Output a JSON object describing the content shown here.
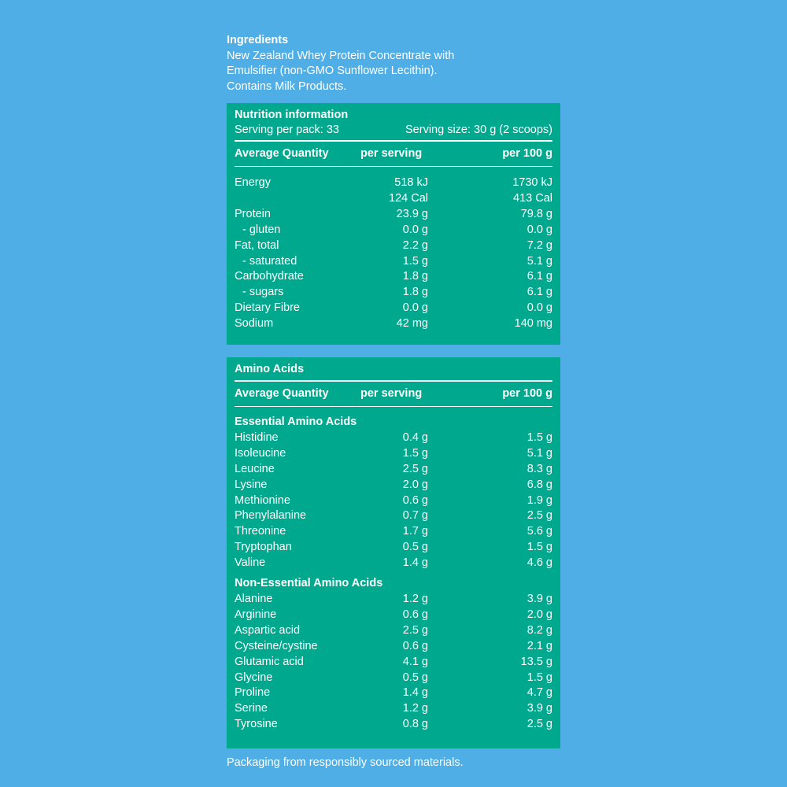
{
  "ingredients": {
    "title": "Ingredients",
    "line1": "New Zealand Whey Protein Concentrate with",
    "line2": "Emulsifier (non-GMO Sunflower Lecithin).",
    "line3": "Contains Milk Products."
  },
  "nutrition": {
    "title": "Nutrition information",
    "serving_per_pack": "Serving per pack: 33",
    "serving_size": "Serving size: 30 g (2 scoops)",
    "headers": [
      "Average Quantity",
      "per serving",
      "per 100 g"
    ],
    "rows": [
      {
        "name": "Energy",
        "per_serving": "518 kJ",
        "per_100g": "1730 kJ",
        "indent": false
      },
      {
        "name": "",
        "per_serving": "124 Cal",
        "per_100g": "413 Cal",
        "indent": false
      },
      {
        "name": "Protein",
        "per_serving": "23.9 g",
        "per_100g": "79.8 g",
        "indent": false
      },
      {
        "name": "- gluten",
        "per_serving": "0.0 g",
        "per_100g": "0.0 g",
        "indent": true
      },
      {
        "name": "Fat, total",
        "per_serving": "2.2 g",
        "per_100g": "7.2 g",
        "indent": false
      },
      {
        "name": "- saturated",
        "per_serving": "1.5 g",
        "per_100g": "5.1 g",
        "indent": true
      },
      {
        "name": "Carbohydrate",
        "per_serving": "1.8 g",
        "per_100g": "6.1 g",
        "indent": false
      },
      {
        "name": "- sugars",
        "per_serving": "1.8 g",
        "per_100g": "6.1 g",
        "indent": true
      },
      {
        "name": "Dietary Fibre",
        "per_serving": "0.0 g",
        "per_100g": "0.0 g",
        "indent": false
      },
      {
        "name": "Sodium",
        "per_serving": "42 mg",
        "per_100g": "140 mg",
        "indent": false
      }
    ]
  },
  "amino": {
    "title": "Amino Acids",
    "headers": [
      "Average Quantity",
      "per serving",
      "per 100 g"
    ],
    "essential_title": "Essential Amino Acids",
    "essential": [
      {
        "name": "Histidine",
        "per_serving": "0.4 g",
        "per_100g": "1.5 g"
      },
      {
        "name": "Isoleucine",
        "per_serving": "1.5 g",
        "per_100g": "5.1 g"
      },
      {
        "name": "Leucine",
        "per_serving": "2.5 g",
        "per_100g": "8.3 g"
      },
      {
        "name": "Lysine",
        "per_serving": "2.0 g",
        "per_100g": "6.8 g"
      },
      {
        "name": "Methionine",
        "per_serving": "0.6 g",
        "per_100g": "1.9 g"
      },
      {
        "name": "Phenylalanine",
        "per_serving": "0.7 g",
        "per_100g": "2.5 g"
      },
      {
        "name": "Threonine",
        "per_serving": "1.7 g",
        "per_100g": "5.6 g"
      },
      {
        "name": "Tryptophan",
        "per_serving": "0.5 g",
        "per_100g": "1.5 g"
      },
      {
        "name": "Valine",
        "per_serving": "1.4 g",
        "per_100g": "4.6 g"
      }
    ],
    "non_essential_title": "Non-Essential Amino Acids",
    "non_essential": [
      {
        "name": "Alanine",
        "per_serving": "1.2 g",
        "per_100g": "3.9 g"
      },
      {
        "name": "Arginine",
        "per_serving": "0.6 g",
        "per_100g": "2.0 g"
      },
      {
        "name": "Aspartic acid",
        "per_serving": "2.5 g",
        "per_100g": "8.2 g"
      },
      {
        "name": "Cysteine/cystine",
        "per_serving": "0.6 g",
        "per_100g": "2.1 g"
      },
      {
        "name": "Glutamic acid",
        "per_serving": "4.1 g",
        "per_100g": "13.5 g"
      },
      {
        "name": "Glycine",
        "per_serving": "0.5 g",
        "per_100g": "1.5 g"
      },
      {
        "name": "Proline",
        "per_serving": "1.4 g",
        "per_100g": "4.7 g"
      },
      {
        "name": "Serine",
        "per_serving": "1.2 g",
        "per_100g": "3.9 g"
      },
      {
        "name": "Tyrosine",
        "per_serving": "0.8 g",
        "per_100g": "2.5 g"
      }
    ]
  },
  "footer": "Packaging from responsibly sourced materials.",
  "colors": {
    "background": "#4faee6",
    "panel": "#00a88e",
    "text": "#ffffff"
  }
}
